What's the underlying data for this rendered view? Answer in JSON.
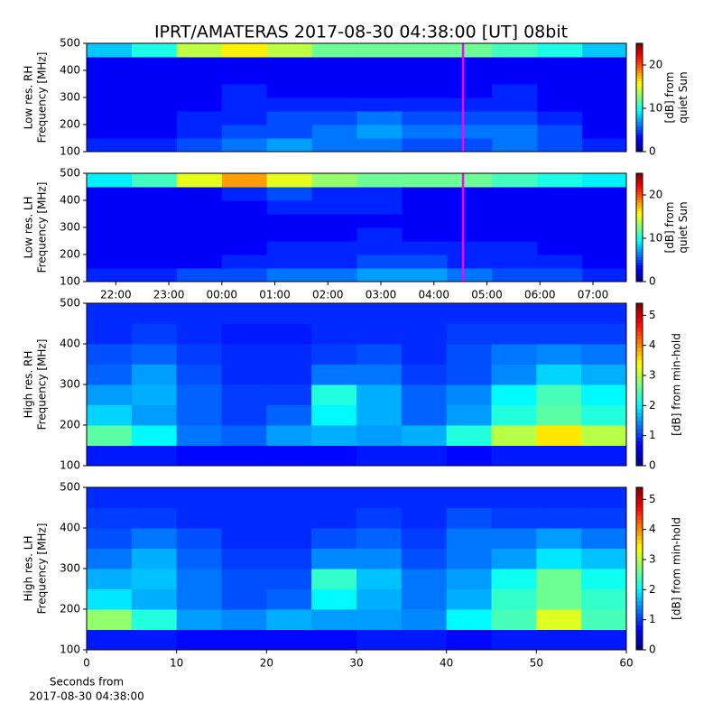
{
  "chart_data": [
    {
      "type": "heatmap",
      "title": "IPRT/AMATERAS 2017-08-30 04:38:00 [UT]   08bit",
      "ylabel": [
        "Low res. RH",
        "Frequency [MHz]"
      ],
      "xlim": [
        -2.55,
        7.63
      ],
      "ylim": [
        100,
        500
      ],
      "yticks": [
        100,
        200,
        300,
        400,
        500
      ],
      "x": [
        -2.55,
        -1.7,
        -0.85,
        0,
        0.85,
        1.7,
        2.55,
        3.4,
        4.25,
        5.1,
        5.95,
        6.8,
        7.63
      ],
      "y": [
        100,
        150,
        200,
        250,
        300,
        350,
        400,
        450,
        500
      ],
      "z": [
        [
          4,
          4,
          5,
          6,
          7,
          6,
          6,
          5,
          5,
          6,
          5,
          4
        ],
        [
          3,
          3,
          4,
          5,
          5,
          6,
          7,
          6,
          6,
          6,
          5,
          3
        ],
        [
          3,
          3,
          4,
          4,
          5,
          5,
          6,
          5,
          5,
          5,
          4,
          3
        ],
        [
          3,
          3,
          3,
          4,
          4,
          4,
          4,
          4,
          4,
          4,
          3,
          3
        ],
        [
          3,
          3,
          3,
          4,
          3,
          3,
          3,
          3,
          3,
          4,
          3,
          3
        ],
        [
          3,
          3,
          3,
          3,
          3,
          3,
          3,
          3,
          3,
          3,
          3,
          3
        ],
        [
          3,
          3,
          3,
          3,
          3,
          3,
          3,
          3,
          3,
          3,
          3,
          3
        ],
        [
          8,
          10,
          14,
          16,
          14,
          12,
          12,
          12,
          12,
          11,
          10,
          8
        ]
      ],
      "marker_line": 4.55,
      "marker_color": "#ff00ff",
      "colorbar": {
        "label": [
          "[dB] from",
          "quiet Sun"
        ],
        "lim": [
          0,
          25
        ],
        "ticks": [
          0,
          10,
          20
        ]
      }
    },
    {
      "type": "heatmap",
      "ylabel": [
        "Low res. LH",
        "Frequency [MHz]"
      ],
      "xlim": [
        -2.55,
        7.63
      ],
      "ylim": [
        100,
        500
      ],
      "yticks": [
        100,
        200,
        300,
        400,
        500
      ],
      "xticks": [
        {
          "value": -2,
          "label": "22:00"
        },
        {
          "value": -1,
          "label": "23:00"
        },
        {
          "value": 0,
          "label": "00:00"
        },
        {
          "value": 1,
          "label": "01:00"
        },
        {
          "value": 2,
          "label": "02:00"
        },
        {
          "value": 3,
          "label": "03:00"
        },
        {
          "value": 4,
          "label": "04:00"
        },
        {
          "value": 5,
          "label": "05:00"
        },
        {
          "value": 6,
          "label": "06:00"
        },
        {
          "value": 7,
          "label": "07:00"
        }
      ],
      "x": [
        -2.55,
        -1.7,
        -0.85,
        0,
        0.85,
        1.7,
        2.55,
        3.4,
        4.25,
        5.1,
        5.95,
        6.8,
        7.63
      ],
      "y": [
        100,
        150,
        200,
        250,
        300,
        350,
        400,
        450,
        500
      ],
      "z": [
        [
          4,
          4,
          5,
          5,
          6,
          6,
          7,
          7,
          6,
          5,
          5,
          4
        ],
        [
          3,
          3,
          3,
          4,
          4,
          4,
          5,
          5,
          4,
          4,
          4,
          3
        ],
        [
          3,
          3,
          3,
          3,
          4,
          4,
          4,
          4,
          4,
          4,
          3,
          3
        ],
        [
          3,
          3,
          3,
          3,
          3,
          3,
          4,
          3,
          3,
          3,
          3,
          3
        ],
        [
          3,
          3,
          3,
          3,
          3,
          3,
          3,
          3,
          3,
          3,
          3,
          3
        ],
        [
          3,
          3,
          3,
          3,
          4,
          4,
          4,
          3,
          3,
          3,
          3,
          3
        ],
        [
          3,
          3,
          3,
          4,
          5,
          4,
          4,
          3,
          3,
          3,
          3,
          3
        ],
        [
          9,
          11,
          15,
          18,
          15,
          13,
          12,
          12,
          12,
          11,
          10,
          9
        ]
      ],
      "marker_line": 4.55,
      "marker_color": "#ff00ff",
      "colorbar": {
        "label": [
          "[dB] from",
          "quiet Sun"
        ],
        "lim": [
          0,
          25
        ],
        "ticks": [
          0,
          10,
          20
        ]
      }
    },
    {
      "type": "heatmap",
      "ylabel": [
        "High res. RH",
        "Frequency [MHz]"
      ],
      "xlim": [
        0,
        60
      ],
      "ylim": [
        100,
        500
      ],
      "yticks": [
        100,
        200,
        300,
        400,
        500
      ],
      "x": [
        0,
        5,
        10,
        15,
        20,
        25,
        30,
        35,
        40,
        45,
        50,
        55,
        60
      ],
      "y": [
        100,
        150,
        200,
        250,
        300,
        350,
        400,
        450,
        500
      ],
      "z": [
        [
          0.8,
          0.8,
          0.7,
          0.7,
          0.7,
          0.7,
          0.8,
          0.8,
          0.7,
          0.8,
          0.8,
          0.8
        ],
        [
          2.5,
          2.0,
          1.3,
          1.2,
          1.5,
          1.6,
          1.5,
          1.6,
          2.2,
          3.0,
          3.5,
          3.0
        ],
        [
          1.8,
          1.5,
          1.2,
          1.0,
          1.2,
          2.0,
          1.6,
          1.2,
          1.5,
          2.2,
          2.5,
          2.2
        ],
        [
          1.5,
          1.6,
          1.2,
          1.0,
          1.0,
          2.2,
          1.6,
          1.2,
          1.4,
          2.0,
          2.4,
          2.0
        ],
        [
          1.2,
          1.5,
          1.1,
          0.9,
          0.9,
          1.3,
          1.3,
          1.0,
          1.1,
          1.4,
          1.8,
          1.6
        ],
        [
          1.1,
          1.2,
          1.0,
          0.9,
          0.9,
          1.0,
          1.1,
          0.9,
          1.1,
          1.3,
          1.4,
          1.3
        ],
        [
          0.9,
          1.0,
          0.9,
          0.8,
          0.8,
          0.9,
          0.9,
          0.9,
          1.0,
          1.0,
          1.0,
          1.0
        ],
        [
          0.9,
          0.9,
          0.9,
          0.9,
          0.9,
          0.9,
          0.9,
          0.9,
          0.9,
          0.9,
          0.9,
          0.9
        ]
      ],
      "colorbar": {
        "label": [
          "[dB] from min-hold"
        ],
        "lim": [
          0,
          5.4
        ],
        "ticks": [
          0,
          1,
          2,
          3,
          4,
          5
        ]
      }
    },
    {
      "type": "heatmap",
      "ylabel": [
        "High res. LH",
        "Frequency [MHz]"
      ],
      "xlabel": [
        "Seconds from",
        "2017-08-30 04:38:00"
      ],
      "xlim": [
        0,
        60
      ],
      "ylim": [
        100,
        500
      ],
      "yticks": [
        100,
        200,
        300,
        400,
        500
      ],
      "xticks": [
        0,
        10,
        20,
        30,
        40,
        50,
        60
      ],
      "x": [
        0,
        5,
        10,
        15,
        20,
        25,
        30,
        35,
        40,
        45,
        50,
        55,
        60
      ],
      "y": [
        100,
        150,
        200,
        250,
        300,
        350,
        400,
        450,
        500
      ],
      "z": [
        [
          0.8,
          0.8,
          0.7,
          0.7,
          0.7,
          0.7,
          0.8,
          0.8,
          0.7,
          0.8,
          0.8,
          0.8
        ],
        [
          2.8,
          2.2,
          1.5,
          1.4,
          1.6,
          1.5,
          1.5,
          1.4,
          2.0,
          2.4,
          3.2,
          2.4
        ],
        [
          1.9,
          1.6,
          1.3,
          1.1,
          1.2,
          2.0,
          1.6,
          1.3,
          1.6,
          2.3,
          2.6,
          2.3
        ],
        [
          1.6,
          1.7,
          1.3,
          1.1,
          1.1,
          2.3,
          1.7,
          1.3,
          1.5,
          2.1,
          2.6,
          2.1
        ],
        [
          1.3,
          1.6,
          1.2,
          1.0,
          1.0,
          1.4,
          1.4,
          1.1,
          1.3,
          1.5,
          1.9,
          1.7
        ],
        [
          1.1,
          1.3,
          1.1,
          0.9,
          0.9,
          1.1,
          1.2,
          1.0,
          1.3,
          1.3,
          1.5,
          1.3
        ],
        [
          1.0,
          1.0,
          0.9,
          0.9,
          0.9,
          0.9,
          1.0,
          0.9,
          1.1,
          1.0,
          1.0,
          1.0
        ],
        [
          0.9,
          0.9,
          0.9,
          0.9,
          0.9,
          0.9,
          0.9,
          0.9,
          0.9,
          0.9,
          0.9,
          0.9
        ]
      ],
      "colorbar": {
        "label": [
          "[dB] from min-hold"
        ],
        "lim": [
          0,
          5.4
        ],
        "ticks": [
          0,
          1,
          2,
          3,
          4,
          5
        ]
      }
    }
  ]
}
